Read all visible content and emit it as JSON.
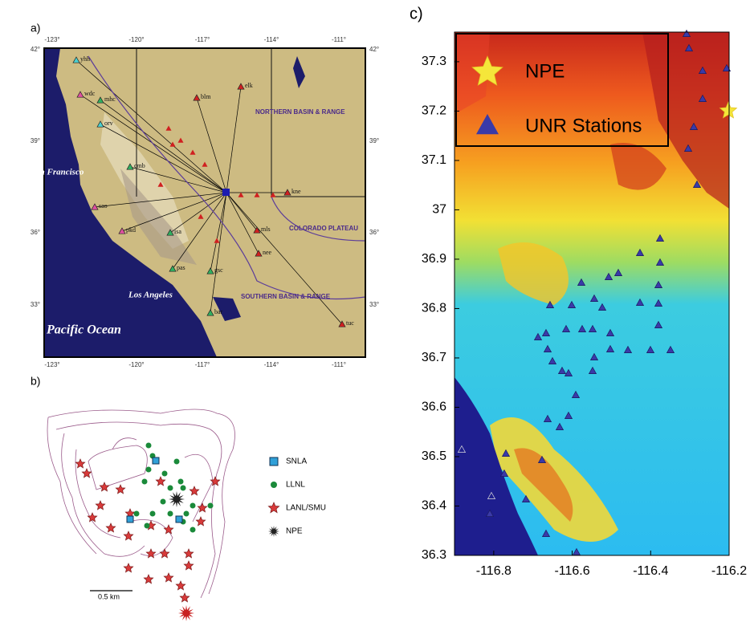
{
  "panel_a": {
    "label": "a)",
    "lon_ticks": [
      "-123°",
      "-120°",
      "-117°",
      "-114°",
      "-111°"
    ],
    "lat_ticks": [
      "42°",
      "39°",
      "36°",
      "33°"
    ],
    "places": [
      "San Francisco",
      "Los Angeles",
      "Pacific Ocean"
    ],
    "regions": [
      "NORTHERN BASIN & RANGE",
      "COLORADO PLATEAU",
      "SOUTHERN BASIN & RANGE"
    ],
    "stations": [
      "yhh",
      "wdc",
      "mhc",
      "orv",
      "cmb",
      "sao",
      "pkd",
      "isa",
      "pas",
      "gsc",
      "blm",
      "elk",
      "kne",
      "mls",
      "nee",
      "bar",
      "tuc"
    ]
  },
  "panel_b": {
    "label": "b)",
    "legend": [
      "SNLA",
      "LLNL",
      "LANL/SMU",
      "NPE"
    ],
    "scale": "0.5 km"
  },
  "panel_c": {
    "label": "c)",
    "xlim": [
      -116.9,
      -116.2
    ],
    "ylim": [
      36.3,
      37.36
    ],
    "xticks": [
      -116.8,
      -116.6,
      -116.4,
      -116.2
    ],
    "yticks": [
      36.3,
      36.4,
      36.5,
      36.6,
      36.7,
      36.8,
      36.9,
      37,
      37.1,
      37.2,
      37.3
    ],
    "legend": [
      "NPE",
      "UNR Stations"
    ]
  }
}
